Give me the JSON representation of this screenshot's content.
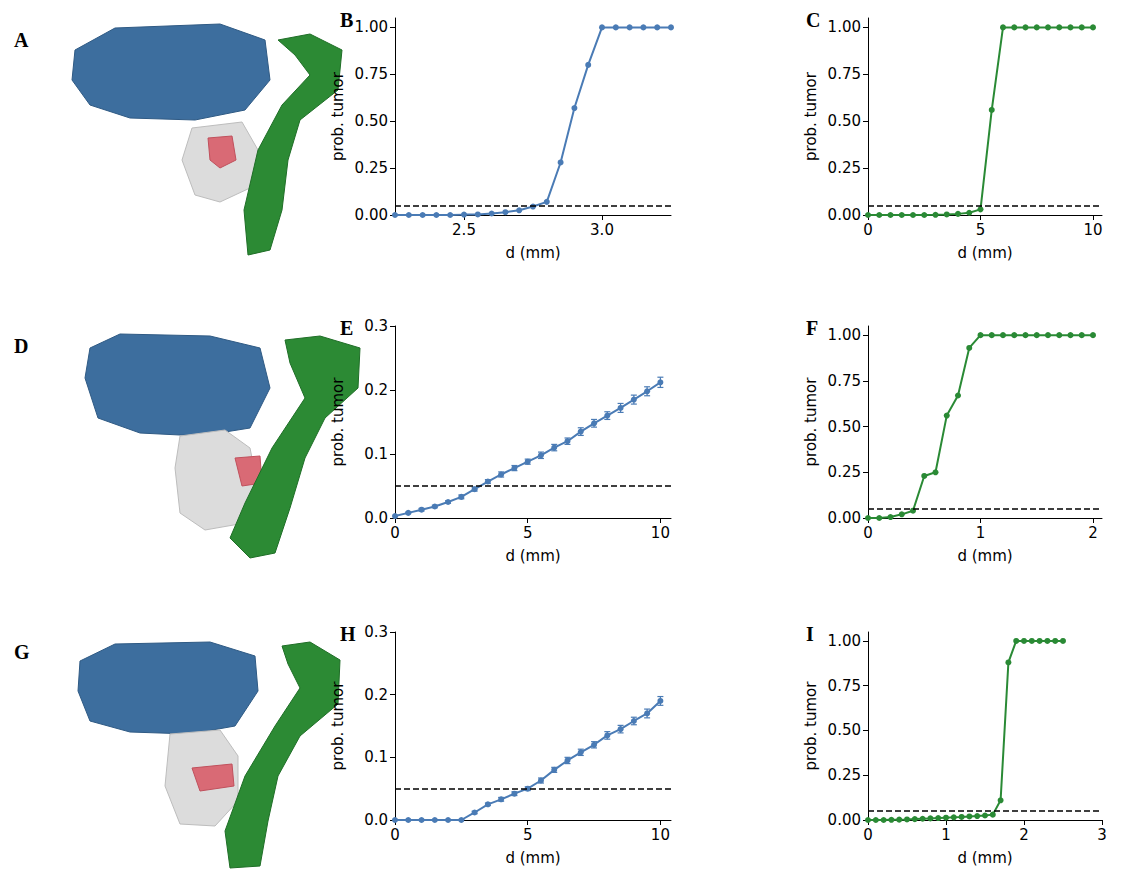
{
  "images": [
    {
      "panel": "A"
    },
    {
      "panel": "D"
    },
    {
      "panel": "G"
    }
  ],
  "chart_data": [
    {
      "panel": "B",
      "type": "line",
      "color": "#4a7bb5",
      "marker": "circle",
      "line_style": "solid",
      "xlabel": "d (mm)",
      "ylabel": "prob. tumor",
      "x": [
        2.25,
        2.3,
        2.35,
        2.4,
        2.45,
        2.5,
        2.55,
        2.6,
        2.65,
        2.7,
        2.75,
        2.8,
        2.85,
        2.9,
        2.95,
        3.0,
        3.05,
        3.1,
        3.15,
        3.2,
        3.25
      ],
      "values": [
        0,
        0,
        0,
        0,
        0,
        0.002,
        0.003,
        0.008,
        0.015,
        0.025,
        0.045,
        0.07,
        0.28,
        0.57,
        0.8,
        1,
        1,
        1,
        1,
        1,
        1
      ],
      "xlim": [
        2.25,
        3.25
      ],
      "xticks": [
        {
          "value": 2.5,
          "label": "2.5"
        },
        {
          "value": 3,
          "label": "3.0"
        }
      ],
      "ylim": [
        0,
        1.05
      ],
      "yticks": [
        {
          "value": 0,
          "label": "0.00"
        },
        {
          "value": 0.25,
          "label": "0.25"
        },
        {
          "value": 0.5,
          "label": "0.50"
        },
        {
          "value": 0.75,
          "label": "0.75"
        },
        {
          "value": 1,
          "label": "1.00"
        }
      ],
      "reference_line": {
        "y": 0.05,
        "line_style": "dashed",
        "color": "#000000"
      }
    },
    {
      "panel": "C",
      "type": "line",
      "color": "#2a8a35",
      "marker": "circle",
      "line_style": "solid",
      "xlabel": "d (mm)",
      "ylabel": "prob. tumor",
      "x": [
        0,
        0.5,
        1,
        1.5,
        2,
        2.5,
        3,
        3.5,
        4,
        4.5,
        5,
        5.5,
        6,
        6.5,
        7,
        7.5,
        8,
        8.5,
        9,
        9.5,
        10
      ],
      "values": [
        0,
        0,
        0,
        0,
        0,
        0,
        0.001,
        0.003,
        0.006,
        0.012,
        0.03,
        0.56,
        1,
        1,
        1,
        1,
        1,
        1,
        1,
        1,
        1
      ],
      "xlim": [
        0,
        10.4
      ],
      "xticks": [
        0,
        5,
        10
      ],
      "ylim": [
        0,
        1.05
      ],
      "yticks": [
        {
          "value": 0,
          "label": "0.00"
        },
        {
          "value": 0.25,
          "label": "0.25"
        },
        {
          "value": 0.5,
          "label": "0.50"
        },
        {
          "value": 0.75,
          "label": "0.75"
        },
        {
          "value": 1,
          "label": "1.00"
        }
      ],
      "reference_line": {
        "y": 0.05,
        "line_style": "dashed",
        "color": "#000000"
      }
    },
    {
      "panel": "E",
      "type": "line",
      "color": "#4a7bb5",
      "marker": "circle",
      "line_style": "solid",
      "xlabel": "d (mm)",
      "ylabel": "prob. tumor",
      "x": [
        0,
        0.5,
        1,
        1.5,
        2,
        2.5,
        3,
        3.5,
        4,
        4.5,
        5,
        5.5,
        6,
        6.5,
        7,
        7.5,
        8,
        8.5,
        9,
        9.5,
        10
      ],
      "values": [
        0.003,
        0.008,
        0.013,
        0.018,
        0.025,
        0.033,
        0.045,
        0.057,
        0.068,
        0.078,
        0.088,
        0.098,
        0.11,
        0.12,
        0.135,
        0.148,
        0.16,
        0.172,
        0.185,
        0.198,
        0.212
      ],
      "errors": [
        0.001,
        0.001,
        0.002,
        0.002,
        0.002,
        0.003,
        0.003,
        0.003,
        0.004,
        0.004,
        0.004,
        0.005,
        0.005,
        0.005,
        0.006,
        0.006,
        0.006,
        0.007,
        0.007,
        0.007,
        0.008
      ],
      "xlim": [
        0,
        10.4
      ],
      "xticks": [
        0,
        5,
        10
      ],
      "ylim": [
        0,
        0.3
      ],
      "yticks": [
        {
          "value": 0,
          "label": "0.0"
        },
        {
          "value": 0.1,
          "label": "0.1"
        },
        {
          "value": 0.2,
          "label": "0.2"
        },
        {
          "value": 0.3,
          "label": "0.3"
        }
      ],
      "reference_line": {
        "y": 0.05,
        "line_style": "dashed",
        "color": "#000000"
      }
    },
    {
      "panel": "F",
      "type": "line",
      "color": "#2a8a35",
      "marker": "circle",
      "line_style": "solid",
      "xlabel": "d (mm)",
      "ylabel": "prob. tumor",
      "x": [
        0,
        0.1,
        0.2,
        0.3,
        0.4,
        0.5,
        0.6,
        0.7,
        0.8,
        0.9,
        1,
        1.1,
        1.2,
        1.3,
        1.4,
        1.5,
        1.6,
        1.7,
        1.8,
        1.9,
        2
      ],
      "values": [
        0,
        0,
        0.005,
        0.02,
        0.04,
        0.23,
        0.25,
        0.56,
        0.67,
        0.93,
        1,
        1,
        1,
        1,
        1,
        1,
        1,
        1,
        1,
        1,
        1
      ],
      "xlim": [
        0,
        2.08
      ],
      "xticks": [
        0,
        1,
        2
      ],
      "ylim": [
        0,
        1.05
      ],
      "yticks": [
        {
          "value": 0,
          "label": "0.00"
        },
        {
          "value": 0.25,
          "label": "0.25"
        },
        {
          "value": 0.5,
          "label": "0.50"
        },
        {
          "value": 0.75,
          "label": "0.75"
        },
        {
          "value": 1,
          "label": "1.00"
        }
      ],
      "reference_line": {
        "y": 0.05,
        "line_style": "dashed",
        "color": "#000000"
      }
    },
    {
      "panel": "H",
      "type": "line",
      "color": "#4a7bb5",
      "marker": "circle",
      "line_style": "solid",
      "xlabel": "d (mm)",
      "ylabel": "prob. tumor",
      "x": [
        0,
        0.5,
        1,
        1.5,
        2,
        2.5,
        3,
        3.5,
        4,
        4.5,
        5,
        5.5,
        6,
        6.5,
        7,
        7.5,
        8,
        8.5,
        9,
        9.5,
        10
      ],
      "values": [
        0,
        0,
        0,
        0,
        0,
        0,
        0.012,
        0.025,
        0.033,
        0.042,
        0.05,
        0.063,
        0.08,
        0.095,
        0.108,
        0.12,
        0.135,
        0.145,
        0.158,
        0.17,
        0.19
      ],
      "errors": [
        0,
        0,
        0,
        0,
        0,
        0,
        0.002,
        0.002,
        0.003,
        0.003,
        0.003,
        0.004,
        0.004,
        0.005,
        0.005,
        0.005,
        0.006,
        0.006,
        0.006,
        0.007,
        0.007
      ],
      "xlim": [
        0,
        10.4
      ],
      "xticks": [
        0,
        5,
        10
      ],
      "ylim": [
        0,
        0.3
      ],
      "yticks": [
        {
          "value": 0,
          "label": "0.0"
        },
        {
          "value": 0.1,
          "label": "0.1"
        },
        {
          "value": 0.2,
          "label": "0.2"
        },
        {
          "value": 0.3,
          "label": "0.3"
        }
      ],
      "reference_line": {
        "y": 0.05,
        "line_style": "dashed",
        "color": "#000000"
      }
    },
    {
      "panel": "I",
      "type": "line",
      "color": "#2a8a35",
      "marker": "circle",
      "line_style": "solid",
      "xlabel": "d (mm)",
      "ylabel": "prob. tumor",
      "x": [
        0,
        0.1,
        0.2,
        0.3,
        0.4,
        0.5,
        0.6,
        0.7,
        0.8,
        0.9,
        1,
        1.1,
        1.2,
        1.3,
        1.4,
        1.5,
        1.6,
        1.7,
        1.8,
        1.9,
        2,
        2.1,
        2.2,
        2.3,
        2.4,
        2.5
      ],
      "values": [
        0,
        0,
        0,
        0.001,
        0.002,
        0.003,
        0.005,
        0.007,
        0.009,
        0.011,
        0.013,
        0.015,
        0.017,
        0.02,
        0.022,
        0.025,
        0.03,
        0.11,
        0.88,
        1,
        1,
        1,
        1,
        1,
        1,
        1
      ],
      "xlim": [
        0,
        3
      ],
      "xticks": [
        0,
        1,
        2,
        3
      ],
      "ylim": [
        0,
        1.05
      ],
      "yticks": [
        {
          "value": 0,
          "label": "0.00"
        },
        {
          "value": 0.25,
          "label": "0.25"
        },
        {
          "value": 0.5,
          "label": "0.50"
        },
        {
          "value": 0.75,
          "label": "0.75"
        },
        {
          "value": 1,
          "label": "1.00"
        }
      ],
      "reference_line": {
        "y": 0.05,
        "line_style": "dashed",
        "color": "#000000"
      }
    }
  ]
}
